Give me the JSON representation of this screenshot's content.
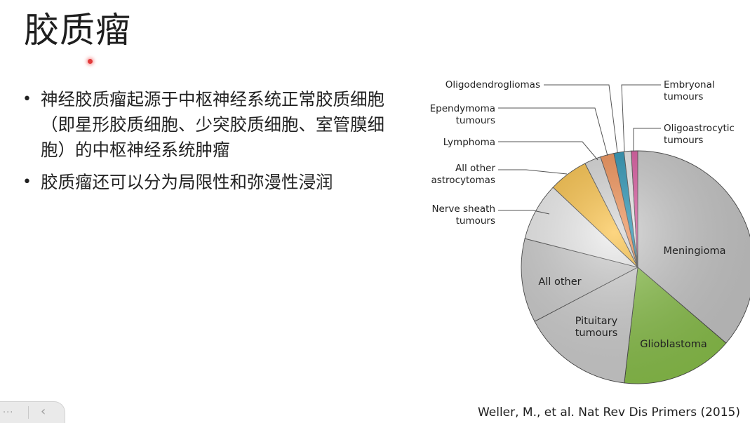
{
  "slide": {
    "title": "胶质瘤",
    "bullets": [
      "神经胶质瘤起源于中枢神经系统正常胶质细胞（即星形胶质细胞、少突胶质细胞、室管膜细胞）的中枢神经系统肿瘤",
      "胶质瘤还可以分为局限性和弥漫性浸润"
    ],
    "citation": "Weller, M., et al. Nat Rev Dis Primers (2015)"
  },
  "nav": {
    "menu_glyph": "···",
    "prev_glyph": "‹"
  },
  "chart_data": {
    "type": "pie",
    "title": "",
    "start": "12 o'clock, clockwise",
    "series": [
      {
        "label": "Meningioma",
        "value": 36.4,
        "color": "#c9c9c9"
      },
      {
        "label": "Glioblastoma",
        "value": 15.6,
        "color": "#8bc34a"
      },
      {
        "label": "Pituitary tumours",
        "value": 15.5,
        "color": "#d2d2d2"
      },
      {
        "label": "All other",
        "value": 11.7,
        "color": "#cfcfcf"
      },
      {
        "label": "Nerve sheath tumours",
        "value": 8.1,
        "color": "#ececec"
      },
      {
        "label": "All other astrocytomas",
        "value": 5.5,
        "color": "#fbbf3d"
      },
      {
        "label": "Lymphoma",
        "value": 2.3,
        "color": "#d6d6d6"
      },
      {
        "label": "Ependymoma tumours",
        "value": 1.9,
        "color": "#f08a4b"
      },
      {
        "label": "Oligodendrogliomas",
        "value": 1.4,
        "color": "#1b8db0"
      },
      {
        "label": "Embryonal tumours",
        "value": 1.0,
        "color": "#e8e8e8"
      },
      {
        "label": "Oligoastrocytic tumours",
        "value": 0.9,
        "color": "#d94f9b"
      }
    ]
  }
}
